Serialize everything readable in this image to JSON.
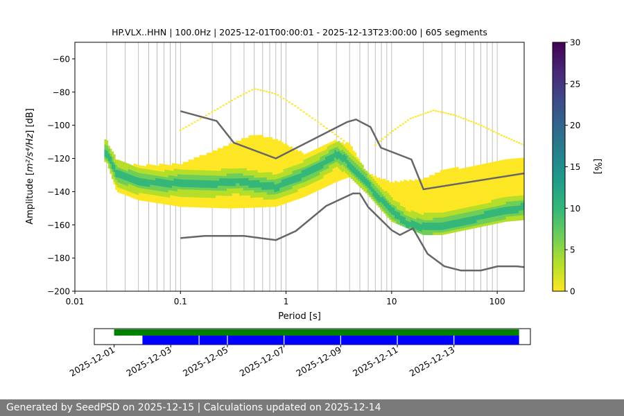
{
  "chart_data": {
    "type": "heatmap",
    "title": "HP.VLX..HHN | 100.0Hz | 2025-12-01T00:00:01 - 2025-12-13T23:00:00 | 605 segments",
    "xlabel": "Period [s]",
    "ylabel_prefix": "Amplitude [",
    "ylabel_math": "m²/s⁴/Hz",
    "ylabel_suffix": "] [dB]",
    "x_scale": "log",
    "xlim": [
      0.01,
      180
    ],
    "ylim": [
      -200,
      -50
    ],
    "x_ticks": [
      {
        "value": 0.01,
        "label": "0.01"
      },
      {
        "value": 0.1,
        "label": "0.1"
      },
      {
        "value": 1,
        "label": "1"
      },
      {
        "value": 10,
        "label": "10"
      },
      {
        "value": 100,
        "label": "100"
      }
    ],
    "y_ticks": [
      {
        "value": -60,
        "label": "−60"
      },
      {
        "value": -80,
        "label": "−80"
      },
      {
        "value": -100,
        "label": "−100"
      },
      {
        "value": -120,
        "label": "−120"
      },
      {
        "value": -140,
        "label": "−140"
      },
      {
        "value": -160,
        "label": "−160"
      },
      {
        "value": -180,
        "label": "−180"
      },
      {
        "value": -200,
        "label": "−200"
      }
    ],
    "grid": "vertical minor and major lines",
    "mode_curve": {
      "x": [
        0.02,
        0.025,
        0.04,
        0.07,
        0.1,
        0.2,
        0.35,
        0.5,
        0.8,
        1.2,
        2,
        3,
        3.6,
        4.5,
        5.5,
        7,
        10,
        14,
        20,
        30,
        50,
        80,
        120,
        180
      ],
      "y": [
        -117,
        -130,
        -134,
        -136,
        -135,
        -136,
        -134,
        -136,
        -138,
        -133,
        -126,
        -118,
        -121,
        -128,
        -133,
        -142,
        -152,
        -160,
        -162,
        -161,
        -158,
        -155,
        -152,
        -150
      ]
    },
    "band_bottom": {
      "x": [
        0.02,
        0.025,
        0.04,
        0.1,
        0.3,
        0.8,
        1.5,
        3,
        4,
        6,
        10,
        20,
        30,
        60,
        120,
        180
      ],
      "y": [
        -122,
        -140,
        -145,
        -149,
        -150,
        -149,
        -143,
        -134,
        -131,
        -142,
        -158,
        -166,
        -166,
        -162,
        -158,
        -157
      ]
    },
    "band_top": {
      "x": [
        0.02,
        0.025,
        0.04,
        0.1,
        0.3,
        0.5,
        0.8,
        1.5,
        3,
        4,
        6,
        10,
        20,
        30,
        60,
        120,
        180
      ],
      "y": [
        -110,
        -122,
        -125,
        -124,
        -112,
        -106,
        -109,
        -118,
        -110,
        -112,
        -130,
        -135,
        -133,
        -128,
        -125,
        -122,
        -120
      ]
    },
    "upper_arc": {
      "x": [
        0.1,
        0.2,
        0.35,
        0.5,
        0.8,
        1.2,
        2,
        3,
        4
      ],
      "y": [
        -103,
        -92,
        -83,
        -78,
        -81,
        -88,
        -98,
        -106,
        -112
      ]
    },
    "upper_arc2": {
      "x": [
        7,
        10,
        15,
        25,
        40,
        70,
        110,
        180
      ],
      "y": [
        -112,
        -104,
        -96,
        -91,
        -94,
        -100,
        -106,
        -112
      ]
    },
    "reference_curves": [
      {
        "x": [
          0.1,
          0.22,
          0.32,
          0.8,
          3.8,
          4.6,
          6.3,
          7.9,
          15.4,
          20,
          179
        ],
        "y": [
          -91.5,
          -97.4,
          -110.5,
          -120,
          -98,
          -96.5,
          -101,
          -113.5,
          -120.6,
          -138.6,
          -129
        ]
      },
      {
        "x": [
          0.1,
          0.17,
          0.4,
          0.8,
          1.24,
          2.4,
          4.3,
          5,
          6,
          10,
          12,
          15.9,
          21.9,
          31.6,
          45,
          70,
          101,
          154,
          179
        ],
        "y": [
          -168,
          -166.7,
          -166.7,
          -169.2,
          -163.7,
          -148.6,
          -141.1,
          -141.1,
          -149.3,
          -163.2,
          -166.1,
          -162.1,
          -177.5,
          -185,
          -187.5,
          -187.5,
          -185,
          -185,
          -185.5
        ]
      }
    ],
    "colorbar": {
      "label": "[%]",
      "range": [
        0,
        30
      ],
      "ticks": [
        "0",
        "5",
        "10",
        "15",
        "20",
        "25",
        "30"
      ],
      "colors": [
        "#fde725",
        "#b5de2b",
        "#6ece58",
        "#35b779",
        "#1f9e89",
        "#26828e",
        "#31688e",
        "#3e4989",
        "#482878",
        "#440154"
      ]
    },
    "availability": {
      "x_ticks": [
        "2025-12-01",
        "2025-12-03",
        "2025-12-05",
        "2025-12-07",
        "2025-12-09",
        "2025-12-11",
        "2025-12-13"
      ],
      "xlim_days": [
        -0.7,
        14.7
      ],
      "green_span_days": [
        0.0,
        14.3
      ],
      "blue_span_days": [
        1.0,
        14.3
      ],
      "blue_gaps_days": [
        3.0,
        4.0,
        6.0,
        8.0,
        10.0,
        12.0
      ],
      "green_color": "#008000",
      "blue_color": "#0000ff"
    }
  },
  "footer": {
    "text": "Generated by SeedPSD on 2025-12-15 | Calculations updated on 2025-12-14"
  }
}
